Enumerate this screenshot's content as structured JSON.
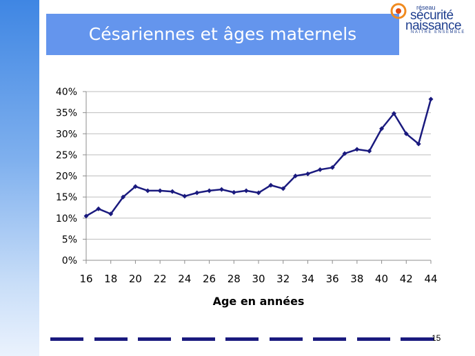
{
  "slide": {
    "title": "Césariennes et âges maternels",
    "page_number": "15",
    "logo": {
      "line1": "réseau",
      "line2": "sécurité",
      "line3": "naissance",
      "line4": "NAÎTRE ENSEMBLE"
    }
  },
  "colors": {
    "title_bg": "#6495ed",
    "line": "#1a1a7e",
    "dash": "#1a1a7e"
  },
  "chart_data": {
    "type": "line",
    "title": "",
    "xlabel": "Age en années",
    "ylabel": "",
    "x": [
      16,
      17,
      18,
      19,
      20,
      21,
      22,
      23,
      24,
      25,
      26,
      27,
      28,
      29,
      30,
      31,
      32,
      33,
      34,
      35,
      36,
      37,
      38,
      39,
      40,
      41,
      42,
      43,
      44
    ],
    "series": [
      {
        "values": [
          10.5,
          12.2,
          11.0,
          15.0,
          17.5,
          16.5,
          16.5,
          16.3,
          15.2,
          16.0,
          16.5,
          16.8,
          16.1,
          16.5,
          16.0,
          17.8,
          17.0,
          20.0,
          20.5,
          21.5,
          22.0,
          25.3,
          26.3,
          25.9,
          31.2,
          34.8,
          30.0,
          27.6,
          38.2
        ]
      }
    ],
    "xlim": [
      16,
      44
    ],
    "ylim": [
      0,
      40
    ],
    "xticks": [
      "16",
      "18",
      "20",
      "22",
      "24",
      "26",
      "28",
      "30",
      "32",
      "34",
      "36",
      "38",
      "40",
      "42",
      "44"
    ],
    "yticks": [
      "0%",
      "5%",
      "10%",
      "15%",
      "20%",
      "25%",
      "30%",
      "35%",
      "40%"
    ],
    "grid": true
  }
}
